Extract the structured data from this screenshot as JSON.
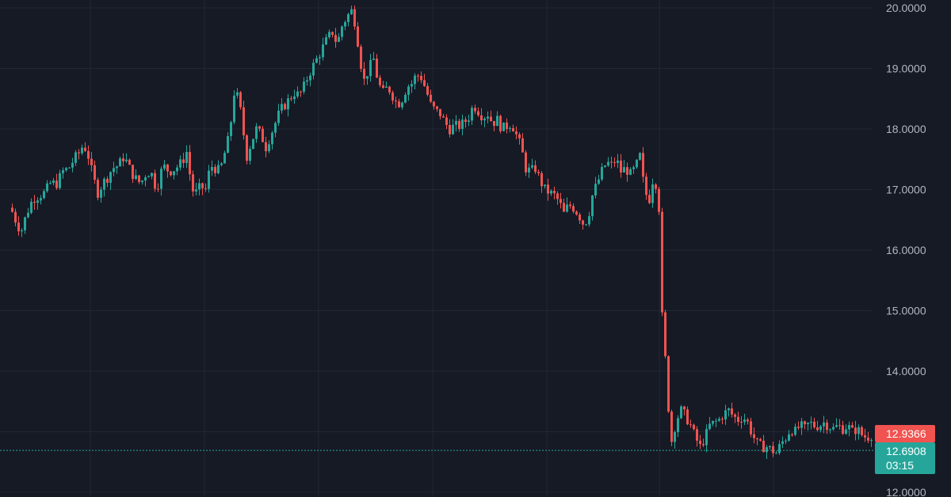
{
  "chart_data": {
    "type": "candlestick",
    "title": "",
    "xlabel": "",
    "ylabel": "",
    "ylim": [
      12.0,
      20.2
    ],
    "y_ticks": [
      "20.0000",
      "19.0000",
      "18.0000",
      "17.0000",
      "16.0000",
      "15.0000",
      "14.0000",
      "13.0000",
      "12.0000"
    ],
    "grid": true,
    "price_scale": "right",
    "last_price": {
      "value": "12.9366",
      "color": "#f05350"
    },
    "marked_price": {
      "value": "12.6908",
      "countdown": "03:15",
      "color": "#26a69a"
    },
    "up_color": "#26a69a",
    "down_color": "#f05350",
    "close_path": [
      [
        0,
        16.5
      ],
      [
        8,
        16.55
      ],
      [
        12,
        16.7
      ],
      [
        18,
        16.5
      ],
      [
        25,
        16.3
      ],
      [
        32,
        16.6
      ],
      [
        40,
        16.85
      ],
      [
        48,
        16.9
      ],
      [
        55,
        16.95
      ],
      [
        62,
        17.1
      ],
      [
        70,
        17.1
      ],
      [
        78,
        17.3
      ],
      [
        85,
        17.35
      ],
      [
        92,
        17.5
      ],
      [
        98,
        17.6
      ],
      [
        104,
        17.75
      ],
      [
        110,
        17.55
      ],
      [
        116,
        17.2
      ],
      [
        122,
        16.95
      ],
      [
        128,
        17.1
      ],
      [
        134,
        17.2
      ],
      [
        140,
        17.35
      ],
      [
        148,
        17.4
      ],
      [
        155,
        17.55
      ],
      [
        162,
        17.35
      ],
      [
        168,
        17.2
      ],
      [
        176,
        17.1
      ],
      [
        184,
        17.3
      ],
      [
        190,
        17.25
      ],
      [
        196,
        17.0
      ],
      [
        204,
        17.4
      ],
      [
        212,
        17.3
      ],
      [
        220,
        17.35
      ],
      [
        228,
        17.45
      ],
      [
        235,
        17.65
      ],
      [
        240,
        17.0
      ],
      [
        246,
        16.95
      ],
      [
        252,
        17.05
      ],
      [
        258,
        17.0
      ],
      [
        264,
        17.4
      ],
      [
        270,
        17.35
      ],
      [
        276,
        17.3
      ],
      [
        282,
        17.6
      ],
      [
        288,
        17.9
      ],
      [
        294,
        18.6
      ],
      [
        300,
        18.5
      ],
      [
        305,
        18.0
      ],
      [
        310,
        17.55
      ],
      [
        316,
        17.8
      ],
      [
        322,
        18.0
      ],
      [
        328,
        17.9
      ],
      [
        334,
        17.7
      ],
      [
        340,
        17.9
      ],
      [
        346,
        18.1
      ],
      [
        352,
        18.3
      ],
      [
        358,
        18.4
      ],
      [
        364,
        18.5
      ],
      [
        370,
        18.6
      ],
      [
        376,
        18.55
      ],
      [
        382,
        18.7
      ],
      [
        388,
        18.9
      ],
      [
        394,
        19.05
      ],
      [
        400,
        19.2
      ],
      [
        406,
        19.35
      ],
      [
        412,
        19.5
      ],
      [
        418,
        19.6
      ],
      [
        424,
        19.4
      ],
      [
        430,
        19.7
      ],
      [
        436,
        19.85
      ],
      [
        442,
        19.95
      ],
      [
        448,
        19.7
      ],
      [
        452,
        19.2
      ],
      [
        458,
        18.8
      ],
      [
        464,
        19.0
      ],
      [
        470,
        19.15
      ],
      [
        476,
        18.75
      ],
      [
        482,
        18.6
      ],
      [
        488,
        18.7
      ],
      [
        494,
        18.55
      ],
      [
        500,
        18.4
      ],
      [
        506,
        18.5
      ],
      [
        512,
        18.7
      ],
      [
        518,
        18.75
      ],
      [
        524,
        18.9
      ],
      [
        530,
        18.85
      ],
      [
        536,
        18.65
      ],
      [
        542,
        18.4
      ],
      [
        548,
        18.3
      ],
      [
        554,
        18.25
      ],
      [
        560,
        18.1
      ],
      [
        566,
        18.0
      ],
      [
        572,
        18.05
      ],
      [
        578,
        18.05
      ],
      [
        584,
        18.1
      ],
      [
        590,
        18.2
      ],
      [
        596,
        18.4
      ],
      [
        602,
        18.3
      ],
      [
        608,
        18.2
      ],
      [
        614,
        18.25
      ],
      [
        620,
        18.1
      ],
      [
        626,
        18.15
      ],
      [
        632,
        18.0
      ],
      [
        638,
        18.05
      ],
      [
        644,
        18.1
      ],
      [
        650,
        17.9
      ],
      [
        656,
        17.7
      ],
      [
        662,
        17.35
      ],
      [
        668,
        17.3
      ],
      [
        674,
        17.35
      ],
      [
        680,
        17.15
      ],
      [
        686,
        17.0
      ],
      [
        692,
        16.95
      ],
      [
        698,
        16.9
      ],
      [
        704,
        16.8
      ],
      [
        710,
        16.6
      ],
      [
        716,
        16.75
      ],
      [
        722,
        16.7
      ],
      [
        728,
        16.6
      ],
      [
        734,
        16.45
      ],
      [
        740,
        16.5
      ],
      [
        746,
        16.9
      ],
      [
        752,
        17.1
      ],
      [
        758,
        17.3
      ],
      [
        764,
        17.45
      ],
      [
        770,
        17.4
      ],
      [
        776,
        17.5
      ],
      [
        782,
        17.3
      ],
      [
        788,
        17.35
      ],
      [
        794,
        17.25
      ],
      [
        800,
        17.35
      ],
      [
        806,
        17.55
      ],
      [
        812,
        16.95
      ],
      [
        818,
        16.85
      ],
      [
        824,
        17.3
      ],
      [
        830,
        16.7
      ],
      [
        834,
        14.9
      ],
      [
        838,
        14.2
      ],
      [
        842,
        13.4
      ],
      [
        846,
        12.85
      ],
      [
        852,
        13.2
      ],
      [
        858,
        13.35
      ],
      [
        864,
        13.25
      ],
      [
        870,
        13.1
      ],
      [
        876,
        12.9
      ],
      [
        882,
        12.75
      ],
      [
        888,
        12.9
      ],
      [
        894,
        13.1
      ],
      [
        900,
        13.15
      ],
      [
        906,
        13.2
      ],
      [
        912,
        13.3
      ],
      [
        918,
        13.35
      ],
      [
        924,
        13.25
      ],
      [
        930,
        13.2
      ],
      [
        936,
        13.25
      ],
      [
        942,
        13.15
      ],
      [
        948,
        12.95
      ],
      [
        954,
        12.8
      ],
      [
        960,
        12.75
      ],
      [
        966,
        12.75
      ],
      [
        972,
        12.7
      ],
      [
        978,
        12.65
      ],
      [
        984,
        12.8
      ],
      [
        990,
        12.9
      ],
      [
        996,
        13.05
      ],
      [
        1002,
        13.0
      ],
      [
        1008,
        13.1
      ],
      [
        1014,
        13.05
      ],
      [
        1020,
        13.15
      ],
      [
        1026,
        13.1
      ],
      [
        1032,
        13.1
      ],
      [
        1038,
        13.15
      ],
      [
        1044,
        13.1
      ],
      [
        1050,
        13.05
      ],
      [
        1056,
        13.1
      ],
      [
        1062,
        13.05
      ],
      [
        1068,
        13.1
      ],
      [
        1074,
        13.0
      ],
      [
        1080,
        13.05
      ],
      [
        1086,
        12.95
      ],
      [
        1092,
        12.9
      ],
      [
        1098,
        12.95
      ],
      [
        1100,
        12.93
      ]
    ]
  }
}
